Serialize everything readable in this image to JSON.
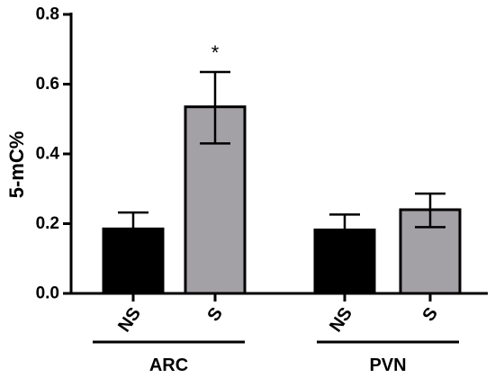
{
  "chart_data": {
    "type": "bar",
    "ylabel": "5-mC%",
    "ylim": [
      0,
      0.8
    ],
    "yticks": [
      "0.0",
      "0.2",
      "0.4",
      "0.6",
      "0.8"
    ],
    "grid": false,
    "groups": [
      {
        "name": "ARC",
        "bars": [
          {
            "label": "NS",
            "value": 0.185,
            "err_low": 0.14,
            "err_high": 0.232,
            "color": "#000000",
            "annotation": ""
          },
          {
            "label": "S",
            "value": 0.535,
            "err_low": 0.43,
            "err_high": 0.635,
            "color": "#a3a0a6",
            "annotation": "*"
          }
        ]
      },
      {
        "name": "PVN",
        "bars": [
          {
            "label": "NS",
            "value": 0.182,
            "err_low": 0.14,
            "err_high": 0.226,
            "color": "#000000",
            "annotation": ""
          },
          {
            "label": "S",
            "value": 0.24,
            "err_low": 0.19,
            "err_high": 0.286,
            "color": "#a3a0a6",
            "annotation": ""
          }
        ]
      }
    ]
  }
}
